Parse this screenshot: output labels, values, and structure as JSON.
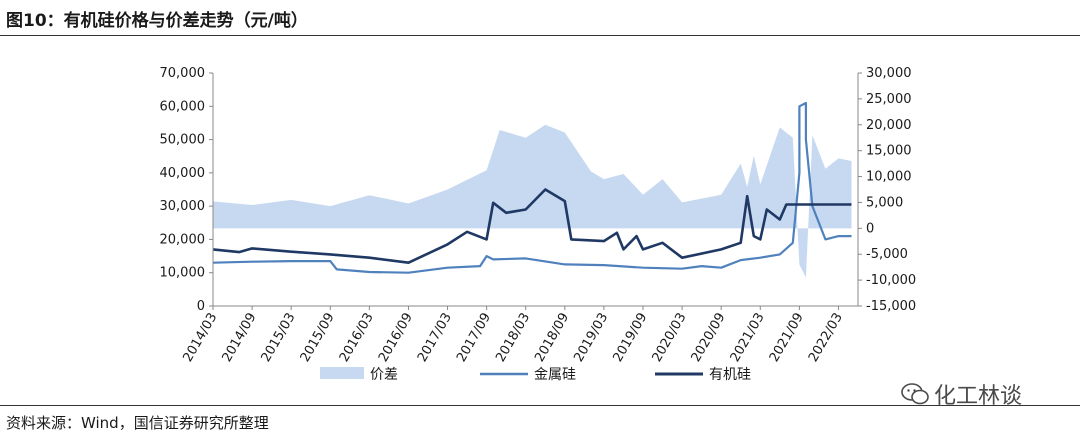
{
  "header": {
    "title": "图10：有机硅价格与价差走势（元/吨）"
  },
  "footer": {
    "source": "资料来源：Wind，国信证券研究所整理"
  },
  "watermark": {
    "text": "化工林谈",
    "icon": "wechat-icon"
  },
  "colors": {
    "spread": "#c6d9f0",
    "metal_silicon": "#4f81bd",
    "organosilicon": "#1f3864"
  },
  "chart_data": {
    "type": "line",
    "title": "",
    "x_tick_labels": [
      "2014/03",
      "2014/09",
      "2015/03",
      "2015/09",
      "2016/03",
      "2016/09",
      "2017/03",
      "2017/09",
      "2018/03",
      "2018/09",
      "2019/03",
      "2019/09",
      "2020/03",
      "2020/09",
      "2021/03",
      "2021/09",
      "2022/03"
    ],
    "y_left": {
      "min": 0,
      "max": 70000,
      "ticks": [
        "0",
        "10,000",
        "20,000",
        "30,000",
        "40,000",
        "50,000",
        "60,000",
        "70,000"
      ]
    },
    "y_right": {
      "min": -15000,
      "max": 30000,
      "ticks": [
        "-15,000",
        "-10,000",
        "-5,000",
        "0",
        "5,000",
        "10,000",
        "15,000",
        "20,000",
        "25,000",
        "30,000"
      ]
    },
    "legend": {
      "placement": "bottom"
    },
    "series": [
      {
        "name": "价差",
        "kind": "area",
        "axis": "right",
        "points": [
          [
            "2014/03",
            5200
          ],
          [
            "2014/09",
            4500
          ],
          [
            "2015/03",
            5500
          ],
          [
            "2015/09",
            4300
          ],
          [
            "2016/03",
            6400
          ],
          [
            "2016/09",
            4800
          ],
          [
            "2017/03",
            7500
          ],
          [
            "2017/09",
            11200
          ],
          [
            "2017/11",
            19000
          ],
          [
            "2018/03",
            17500
          ],
          [
            "2018/06",
            20000
          ],
          [
            "2018/09",
            18500
          ],
          [
            "2019/01",
            11000
          ],
          [
            "2019/03",
            9500
          ],
          [
            "2019/06",
            10500
          ],
          [
            "2019/09",
            6500
          ],
          [
            "2019/12",
            9500
          ],
          [
            "2020/03",
            5000
          ],
          [
            "2020/09",
            6500
          ],
          [
            "2020/12",
            12500
          ],
          [
            "2021/01",
            8000
          ],
          [
            "2021/02",
            14000
          ],
          [
            "2021/03",
            8500
          ],
          [
            "2021/06",
            19500
          ],
          [
            "2021/08",
            17500
          ],
          [
            "2021/09",
            -7000
          ],
          [
            "2021/10",
            -9500
          ],
          [
            "2021/11",
            18000
          ],
          [
            "2022/01",
            11500
          ],
          [
            "2022/03",
            13500
          ],
          [
            "2022/05",
            13000
          ]
        ]
      },
      {
        "name": "金属硅",
        "kind": "line",
        "axis": "left",
        "points": [
          [
            "2014/03",
            13000
          ],
          [
            "2014/09",
            13300
          ],
          [
            "2015/03",
            13500
          ],
          [
            "2015/09",
            13500
          ],
          [
            "2015/10",
            11000
          ],
          [
            "2016/03",
            10200
          ],
          [
            "2016/09",
            10000
          ],
          [
            "2017/03",
            11500
          ],
          [
            "2017/08",
            12000
          ],
          [
            "2017/09",
            15000
          ],
          [
            "2017/10",
            14000
          ],
          [
            "2018/03",
            14300
          ],
          [
            "2018/09",
            12500
          ],
          [
            "2019/03",
            12300
          ],
          [
            "2019/09",
            11500
          ],
          [
            "2020/03",
            11200
          ],
          [
            "2020/06",
            12000
          ],
          [
            "2020/09",
            11500
          ],
          [
            "2020/12",
            13800
          ],
          [
            "2021/03",
            14500
          ],
          [
            "2021/06",
            15500
          ],
          [
            "2021/08",
            19000
          ],
          [
            "2021/09",
            40000
          ],
          [
            "2021/09",
            60000
          ],
          [
            "2021/10",
            61000
          ],
          [
            "2021/10",
            50000
          ],
          [
            "2021/11",
            30000
          ],
          [
            "2022/01",
            20000
          ],
          [
            "2022/03",
            21000
          ],
          [
            "2022/05",
            21000
          ]
        ]
      },
      {
        "name": "有机硅",
        "kind": "line",
        "axis": "left",
        "points": [
          [
            "2014/03",
            17000
          ],
          [
            "2014/07",
            16200
          ],
          [
            "2014/09",
            17300
          ],
          [
            "2015/03",
            16300
          ],
          [
            "2015/09",
            15500
          ],
          [
            "2016/03",
            14500
          ],
          [
            "2016/09",
            13000
          ],
          [
            "2017/03",
            18500
          ],
          [
            "2017/06",
            22300
          ],
          [
            "2017/09",
            20000
          ],
          [
            "2017/10",
            31000
          ],
          [
            "2017/12",
            28000
          ],
          [
            "2018/03",
            29000
          ],
          [
            "2018/06",
            35000
          ],
          [
            "2018/09",
            31500
          ],
          [
            "2018/10",
            20000
          ],
          [
            "2019/03",
            19500
          ],
          [
            "2019/05",
            22000
          ],
          [
            "2019/06",
            17000
          ],
          [
            "2019/08",
            21000
          ],
          [
            "2019/09",
            17000
          ],
          [
            "2019/12",
            19000
          ],
          [
            "2020/03",
            14500
          ],
          [
            "2020/09",
            17000
          ],
          [
            "2020/12",
            19000
          ],
          [
            "2021/01",
            33000
          ],
          [
            "2021/02",
            21000
          ],
          [
            "2021/03",
            20000
          ],
          [
            "2021/04",
            29000
          ],
          [
            "2021/06",
            26000
          ],
          [
            "2021/07",
            30500
          ],
          [
            "2021/10",
            30500
          ],
          [
            "2022/03",
            30500
          ],
          [
            "2022/05",
            30500
          ]
        ]
      }
    ]
  }
}
